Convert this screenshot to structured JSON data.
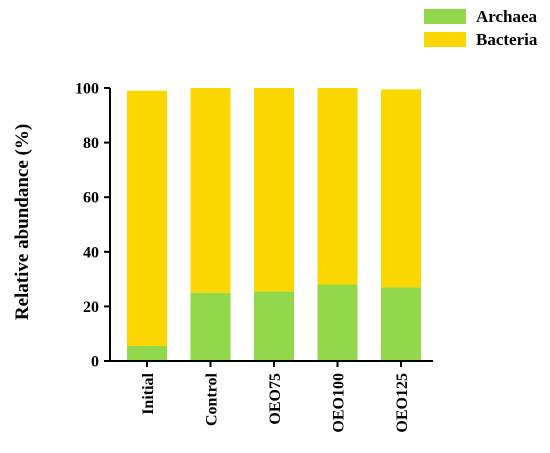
{
  "chart_data": {
    "type": "bar",
    "stacked": true,
    "categories": [
      "Initial",
      "Control",
      "OEO75",
      "OEO100",
      "OEO125"
    ],
    "series": [
      {
        "name": "Archaea",
        "color": "#92d84b",
        "values": [
          5.5,
          25,
          25.5,
          28,
          27
        ]
      },
      {
        "name": "Bacteria",
        "color": "#fcd600",
        "values": [
          93.5,
          75,
          74.5,
          72,
          72.5
        ]
      }
    ],
    "xlabel": "",
    "ylabel": "Relative abundance (%)",
    "ylim": [
      0,
      100
    ],
    "yticks": [
      0,
      20,
      40,
      60,
      80,
      100
    ],
    "grid": false,
    "legend_position": "top-right"
  }
}
